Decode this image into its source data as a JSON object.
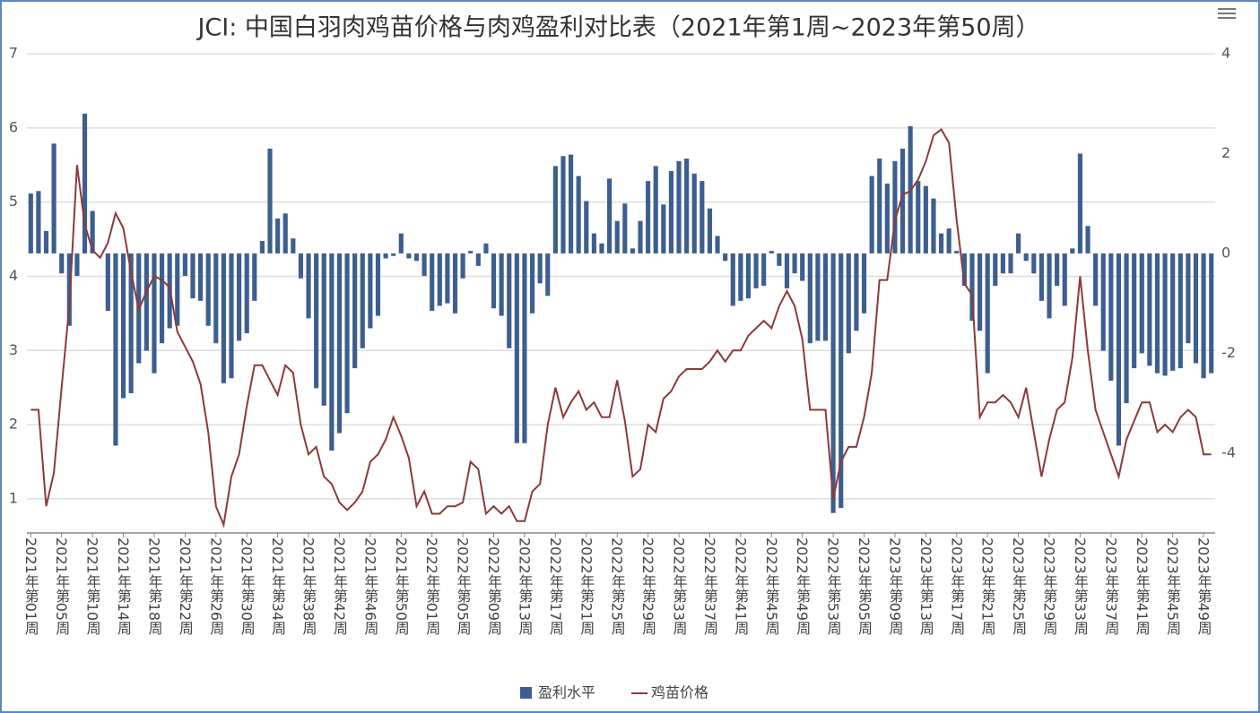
{
  "chart_data": {
    "type": "bar-line",
    "title": "JCI: 中国白羽肉鸡苗价格与肉鸡盈利对比表（2021年第1周~2023年第50周）",
    "categories": [
      "2021年第01周",
      null,
      null,
      null,
      "2021年第05周",
      null,
      null,
      null,
      "2021年第10周",
      null,
      null,
      null,
      "2021年第14周",
      null,
      null,
      null,
      "2021年第18周",
      null,
      null,
      null,
      "2021年第22周",
      null,
      null,
      null,
      "2021年第26周",
      null,
      null,
      null,
      "2021年第30周",
      null,
      null,
      null,
      "2021年第34周",
      null,
      null,
      null,
      "2021年第38周",
      null,
      null,
      null,
      "2021年第42周",
      null,
      null,
      null,
      "2021年第46周",
      null,
      null,
      null,
      "2021年第50周",
      null,
      null,
      null,
      "2022年第01周",
      null,
      null,
      null,
      "2022年第05周",
      null,
      null,
      null,
      "2022年第09周",
      null,
      null,
      null,
      "2022年第13周",
      null,
      null,
      null,
      "2022年第17周",
      null,
      null,
      null,
      "2022年第21周",
      null,
      null,
      null,
      "2022年第25周",
      null,
      null,
      null,
      "2022年第29周",
      null,
      null,
      null,
      "2022年第33周",
      null,
      null,
      null,
      "2022年第37周",
      null,
      null,
      null,
      "2022年第41周",
      null,
      null,
      null,
      "2022年第45周",
      null,
      null,
      null,
      "2022年第49周",
      null,
      null,
      null,
      "2022年第53周",
      null,
      null,
      null,
      "2023年第05周",
      null,
      null,
      null,
      "2023年第09周",
      null,
      null,
      null,
      "2023年第13周",
      null,
      null,
      null,
      "2023年第17周",
      null,
      null,
      null,
      "2023年第21周",
      null,
      null,
      null,
      "2023年第25周",
      null,
      null,
      null,
      "2023年第29周",
      null,
      null,
      null,
      "2023年第33周",
      null,
      null,
      null,
      "2023年第37周",
      null,
      null,
      null,
      "2023年第41周",
      null,
      null,
      null,
      "2023年第45周",
      null,
      null,
      null,
      "2023年第49周",
      null
    ],
    "series": [
      {
        "name": "盈利水平",
        "type": "bar",
        "axis": "y2",
        "color": "#3d5f8f",
        "values": [
          1.2,
          1.25,
          0.45,
          2.2,
          -0.4,
          -1.45,
          -0.45,
          2.8,
          0.85,
          0,
          -1.15,
          -3.85,
          -2.9,
          -2.8,
          -2.2,
          -1.95,
          -2.4,
          -1.8,
          -1.5,
          -1.45,
          -0.45,
          -0.9,
          -0.95,
          -1.45,
          -1.8,
          -2.6,
          -2.5,
          -1.75,
          -1.6,
          -0.95,
          0.25,
          2.1,
          0.7,
          0.8,
          0.3,
          -0.5,
          -1.3,
          -2.7,
          -3.05,
          -3.95,
          -3.6,
          -3.2,
          -2.3,
          -1.9,
          -1.5,
          -1.25,
          -0.1,
          -0.05,
          0.4,
          -0.1,
          -0.15,
          -0.45,
          -1.15,
          -1.05,
          -1.0,
          -1.2,
          -0.5,
          0.05,
          -0.25,
          0.2,
          -1.1,
          -1.25,
          -1.9,
          -3.8,
          -3.8,
          -1.2,
          -0.6,
          -0.85,
          1.75,
          1.95,
          1.98,
          1.55,
          1.05,
          0.4,
          0.2,
          1.5,
          0.65,
          1.0,
          0.1,
          0.65,
          1.45,
          1.75,
          0.98,
          1.65,
          1.85,
          1.9,
          1.6,
          1.45,
          0.9,
          0.35,
          -0.15,
          -1.05,
          -0.95,
          -0.9,
          -0.7,
          -0.65,
          0.05,
          -0.25,
          -0.7,
          -0.4,
          -0.55,
          -1.8,
          -1.75,
          -1.75,
          -5.2,
          -5.1,
          -2.0,
          -1.55,
          -1.2,
          1.55,
          1.9,
          1.4,
          1.85,
          2.1,
          2.55,
          1.45,
          1.35,
          1.1,
          0.4,
          0.5,
          0.05,
          -0.65,
          -1.35,
          -1.55,
          -2.4,
          -0.65,
          -0.4,
          -0.4,
          0.4,
          -0.15,
          -0.4,
          -0.95,
          -1.3,
          -0.65,
          -1.05,
          0.1,
          2.0,
          0.55,
          -1.05,
          -1.95,
          -2.55,
          -3.85,
          -3.0,
          -2.3,
          -2.0,
          -2.25,
          -2.4,
          -2.45,
          -2.35,
          -2.3,
          -1.8,
          -2.2,
          -2.5,
          -2.4
        ]
      },
      {
        "name": "鸡苗价格",
        "type": "line",
        "color": "#8b3a3a",
        "values": [
          2.2,
          2.2,
          0.9,
          1.35,
          2.5,
          3.6,
          5.5,
          4.7,
          4.35,
          4.25,
          4.45,
          4.85,
          4.65,
          4.05,
          3.55,
          3.8,
          4.0,
          3.95,
          3.85,
          3.25,
          3.05,
          2.85,
          2.55,
          1.9,
          0.9,
          0.65,
          1.3,
          1.6,
          2.25,
          2.8,
          2.8,
          2.6,
          2.4,
          2.8,
          2.7,
          2.0,
          1.6,
          1.7,
          1.3,
          1.2,
          0.95,
          0.85,
          0.95,
          1.1,
          1.5,
          1.6,
          1.8,
          2.1,
          1.85,
          1.55,
          0.9,
          1.1,
          0.8,
          0.8,
          0.9,
          0.9,
          0.95,
          1.5,
          1.4,
          0.8,
          0.9,
          0.8,
          0.9,
          0.7,
          0.7,
          1.1,
          1.2,
          2.0,
          2.5,
          2.1,
          2.3,
          2.45,
          2.2,
          2.3,
          2.1,
          2.1,
          2.6,
          2.05,
          1.3,
          1.4,
          2.0,
          1.9,
          2.35,
          2.45,
          2.65,
          2.75,
          2.75,
          2.75,
          2.85,
          3.0,
          2.85,
          3.0,
          3.0,
          3.2,
          3.3,
          3.4,
          3.3,
          3.6,
          3.8,
          3.6,
          3.15,
          2.2,
          2.2,
          2.2,
          1.0,
          1.5,
          1.7,
          1.7,
          2.1,
          2.7,
          3.95,
          3.95,
          4.75,
          5.1,
          5.15,
          5.3,
          5.55,
          5.9,
          5.98,
          5.8,
          4.75,
          3.9,
          3.75,
          2.1,
          2.3,
          2.3,
          2.4,
          2.3,
          2.1,
          2.5,
          1.9,
          1.3,
          1.8,
          2.2,
          2.3,
          2.9,
          4.0,
          3.0,
          2.2,
          1.9,
          1.6,
          1.3,
          1.8,
          2.05,
          2.3,
          2.3,
          1.9,
          2.0,
          1.9,
          2.1,
          2.2,
          2.1,
          1.6,
          1.6
        ]
      }
    ],
    "ylim": [
      0.54,
      7
    ],
    "yticks": [
      1,
      2,
      3,
      4,
      5,
      6,
      7
    ],
    "y2lim": [
      -5.6,
      4
    ],
    "y2ticks": [
      -4,
      -2,
      0,
      2,
      4
    ],
    "grid": true,
    "legend": "bottom"
  }
}
